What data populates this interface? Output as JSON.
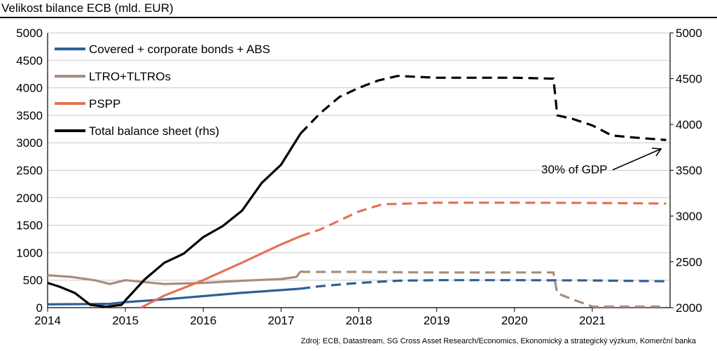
{
  "header": {
    "title": "Velikost bilance ECB (mld. EUR)",
    "source": "Zdroj: ECB, Datastream, SG Cross Asset Research/Economics, Ekonomický a strategický výzkum, Komerční banka"
  },
  "chart_data": {
    "type": "line",
    "title": "Velikost bilance ECB (mld. EUR)",
    "xlim": [
      2014,
      2022
    ],
    "ylim": [
      0,
      5000
    ],
    "y2lim": [
      2000,
      5000
    ],
    "x_ticks": [
      "2014",
      "2015",
      "2016",
      "2017",
      "2018",
      "2019",
      "2020",
      "2021"
    ],
    "y_ticks": [
      "0",
      "500",
      "1000",
      "1500",
      "2000",
      "2500",
      "3000",
      "3500",
      "4000",
      "4500",
      "5000"
    ],
    "y2_ticks": [
      "2000",
      "2500",
      "3000",
      "3500",
      "4000",
      "4500",
      "5000"
    ],
    "grid": "horizontal",
    "legend_position": "top-left",
    "forecast_start": 2017.25,
    "annotation": "30% of GDP",
    "series": [
      {
        "name": "Covered + corporate bonds + ABS",
        "color": "#2e5f98",
        "axis": "left",
        "x": [
          2014.0,
          2014.5,
          2014.8,
          2015.0,
          2015.5,
          2016.0,
          2016.5,
          2017.0,
          2017.25,
          2017.5,
          2018.0,
          2018.5,
          2019.0,
          2020.0,
          2021.0,
          2021.95
        ],
        "values": [
          60,
          65,
          70,
          100,
          150,
          210,
          270,
          320,
          345,
          390,
          450,
          490,
          500,
          500,
          495,
          480
        ]
      },
      {
        "name": "LTRO+TLTROs",
        "color": "#a88d7e",
        "axis": "left",
        "x": [
          2014.0,
          2014.3,
          2014.6,
          2014.8,
          2015.0,
          2015.5,
          2016.0,
          2016.5,
          2017.0,
          2017.2,
          2017.25,
          2017.3,
          2018.0,
          2019.0,
          2020.0,
          2020.5,
          2020.55,
          2020.75,
          2021.0,
          2021.95
        ],
        "values": [
          590,
          560,
          500,
          430,
          500,
          430,
          450,
          490,
          520,
          560,
          660,
          650,
          650,
          640,
          640,
          640,
          260,
          150,
          20,
          20
        ]
      },
      {
        "name": "PSPP",
        "color": "#e67152",
        "axis": "left",
        "x": [
          2015.2,
          2015.5,
          2016.0,
          2016.5,
          2017.0,
          2017.25,
          2017.5,
          2018.0,
          2018.3,
          2019.0,
          2020.0,
          2021.0,
          2021.95
        ],
        "values": [
          0,
          220,
          500,
          820,
          1150,
          1300,
          1420,
          1750,
          1880,
          1910,
          1910,
          1905,
          1895
        ]
      },
      {
        "name": "Total balance sheet (rhs)",
        "color": "#000000",
        "axis": "right",
        "x": [
          2014.0,
          2014.15,
          2014.35,
          2014.55,
          2014.75,
          2014.95,
          2015.0,
          2015.25,
          2015.5,
          2015.75,
          2016.0,
          2016.25,
          2016.5,
          2016.75,
          2017.0,
          2017.25,
          2017.5,
          2017.75,
          2018.0,
          2018.25,
          2018.5,
          2018.75,
          2019.0,
          2019.5,
          2020.0,
          2020.5,
          2020.52,
          2020.55,
          2020.75,
          2021.0,
          2021.25,
          2021.5,
          2021.95
        ],
        "values": [
          2270,
          2230,
          2160,
          2030,
          2010,
          2030,
          2080,
          2310,
          2490,
          2590,
          2770,
          2890,
          3060,
          3360,
          3560,
          3900,
          4120,
          4300,
          4400,
          4480,
          4530,
          4520,
          4510,
          4510,
          4510,
          4500,
          4350,
          4100,
          4060,
          3990,
          3880,
          3860,
          3830
        ]
      }
    ]
  }
}
